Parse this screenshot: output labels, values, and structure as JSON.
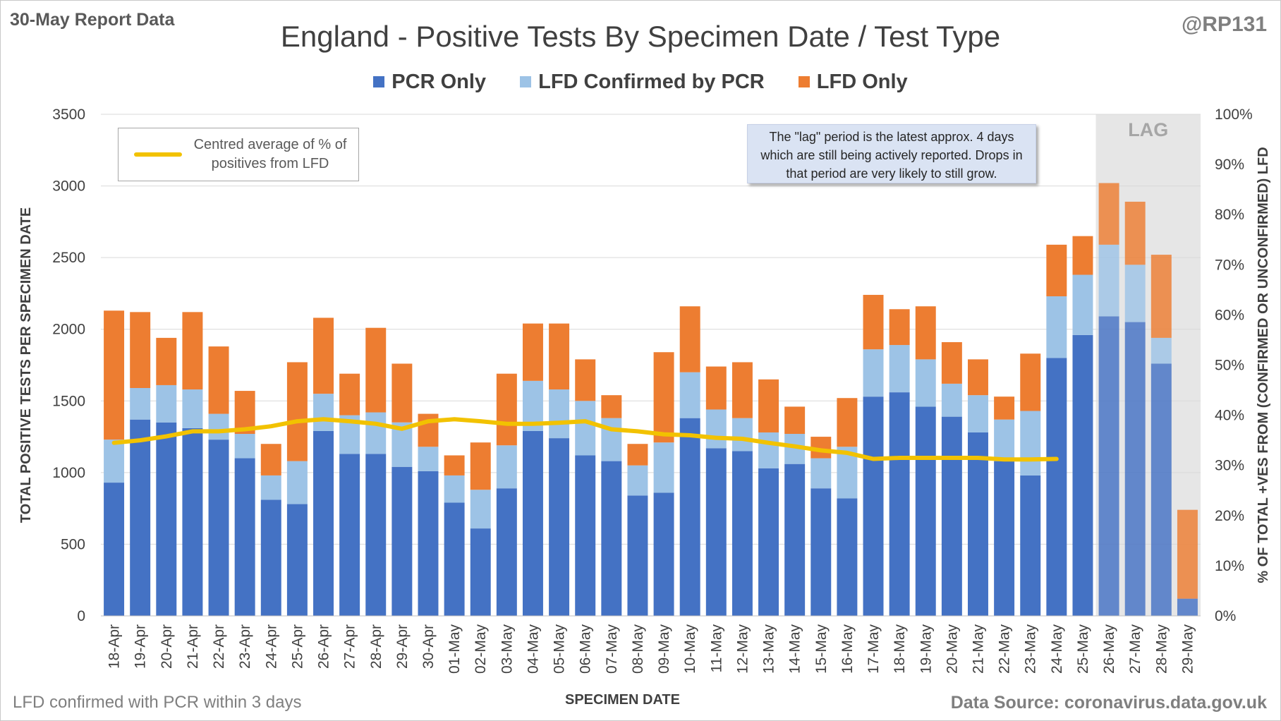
{
  "report_label": "30-May Report Data",
  "handle": "@RP131",
  "footnote": "LFD confirmed with PCR within 3 days",
  "source": "Data Source: coronavirus.data.gov.uk",
  "annotation": "The \"lag\" period is the latest approx. 4 days which are still being actively reported. Drops in that period are very likely to still grow.",
  "line_legend_label": "Centred average of % of positives from LFD",
  "colors": {
    "pcr": "#4472c4",
    "lfd_confirmed": "#9dc3e6",
    "lfd_only": "#ed7d31",
    "line": "#f2c200",
    "lag_shade": "#e6e6e6",
    "grid": "#d9d9d9"
  },
  "chart_data": {
    "type": "bar",
    "stacked": true,
    "title": "England - Positive Tests By Specimen Date / Test Type",
    "xlabel": "SPECIMEN DATE",
    "ylabel": "TOTAL POSITIVE TESTS PER SPECIMEN DATE",
    "y2label": "% OF TOTAL +VES FROM (CONFIRMED OR UNCONFIRMED) LFD",
    "ylim": [
      0,
      3500
    ],
    "yticks": [
      0,
      500,
      1000,
      1500,
      2000,
      2500,
      3000,
      3500
    ],
    "y2lim": [
      0,
      100
    ],
    "y2ticks": [
      "0%",
      "10%",
      "20%",
      "30%",
      "40%",
      "50%",
      "60%",
      "70%",
      "80%",
      "90%",
      "100%"
    ],
    "legend_position": "top",
    "grid": true,
    "lag_label": "LAG",
    "lag_categories": [
      "26-May",
      "27-May",
      "28-May",
      "29-May"
    ],
    "categories": [
      "18-Apr",
      "19-Apr",
      "20-Apr",
      "21-Apr",
      "22-Apr",
      "23-Apr",
      "24-Apr",
      "25-Apr",
      "26-Apr",
      "27-Apr",
      "28-Apr",
      "29-Apr",
      "30-Apr",
      "01-May",
      "02-May",
      "03-May",
      "04-May",
      "05-May",
      "06-May",
      "07-May",
      "08-May",
      "09-May",
      "10-May",
      "11-May",
      "12-May",
      "13-May",
      "14-May",
      "15-May",
      "16-May",
      "17-May",
      "18-May",
      "19-May",
      "20-May",
      "21-May",
      "22-May",
      "23-May",
      "24-May",
      "25-May",
      "26-May",
      "27-May",
      "28-May",
      "29-May"
    ],
    "series": [
      {
        "name": "PCR Only",
        "values": [
          930,
          1370,
          1350,
          1310,
          1230,
          1100,
          810,
          780,
          1290,
          1130,
          1130,
          1040,
          1010,
          790,
          610,
          890,
          1290,
          1240,
          1120,
          1080,
          840,
          860,
          1380,
          1170,
          1150,
          1030,
          1060,
          890,
          820,
          1530,
          1560,
          1460,
          1390,
          1280,
          1080,
          980,
          1800,
          1960,
          2090,
          2050,
          1760,
          120
        ]
      },
      {
        "name": "LFD Confirmed by PCR",
        "values": [
          300,
          220,
          260,
          270,
          180,
          170,
          170,
          300,
          260,
          270,
          290,
          310,
          170,
          190,
          270,
          300,
          350,
          340,
          380,
          300,
          210,
          350,
          320,
          270,
          230,
          250,
          210,
          210,
          360,
          330,
          330,
          330,
          230,
          260,
          290,
          450,
          430,
          420,
          500,
          400,
          180,
          0
        ]
      },
      {
        "name": "LFD Only",
        "values": [
          900,
          530,
          330,
          540,
          470,
          300,
          220,
          690,
          530,
          290,
          590,
          410,
          230,
          140,
          330,
          500,
          400,
          460,
          290,
          160,
          150,
          630,
          460,
          300,
          390,
          370,
          190,
          150,
          340,
          380,
          250,
          370,
          290,
          250,
          160,
          400,
          360,
          270,
          430,
          440,
          580,
          620
        ]
      },
      {
        "name": "Centred average of % of positives from LFD",
        "axis": "y2",
        "type": "line",
        "values": [
          34.5,
          35,
          35.8,
          36.8,
          36.8,
          37.2,
          37.8,
          38.8,
          39.2,
          38.8,
          38.3,
          37.3,
          38.8,
          39.2,
          38.8,
          38.3,
          38.3,
          38.5,
          38.8,
          37.2,
          36.8,
          36.2,
          36,
          35.5,
          35.3,
          34.5,
          33.8,
          33,
          32.5,
          31.3,
          31.5,
          31.5,
          31.5,
          31.5,
          31.2,
          31.2,
          31.3,
          null,
          null,
          null,
          null,
          null
        ]
      }
    ]
  }
}
